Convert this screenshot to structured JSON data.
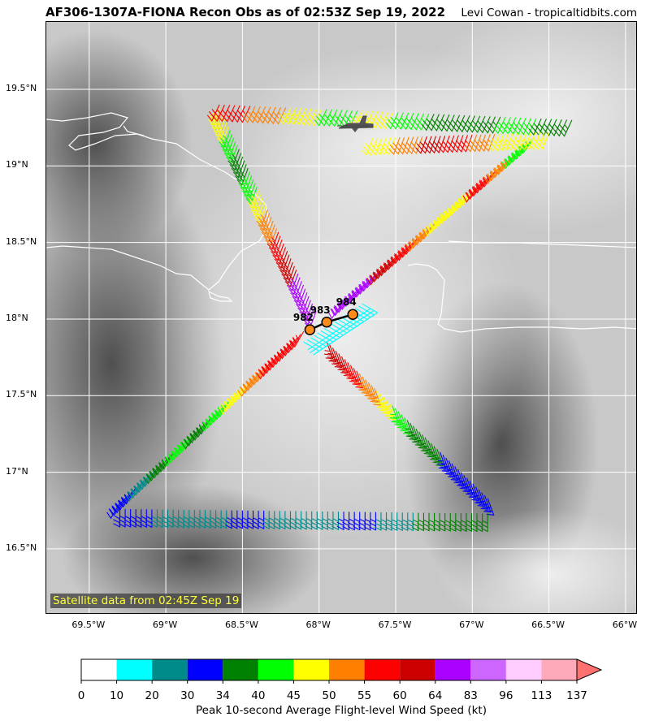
{
  "header": {
    "title": "AF306-1307A-FIONA Recon Obs as of 02:53Z Sep 19, 2022",
    "credit": "Levi Cowan - tropicaltidbits.com"
  },
  "map": {
    "lat_labels": [
      "19.5°N",
      "19°N",
      "18.5°N",
      "18°N",
      "17.5°N",
      "17°N",
      "16.5°N"
    ],
    "lon_labels": [
      "69.5°W",
      "69°W",
      "68.5°W",
      "68°W",
      "67.5°W",
      "67°W",
      "66.5°W",
      "66°W"
    ],
    "satellite_note": "Satellite data from 02:45Z Sep 19",
    "pressure_obs": [
      {
        "label": "982",
        "lat": 17.93,
        "lon": -68.06
      },
      {
        "label": "983",
        "lat": 17.98,
        "lon": -67.95
      },
      {
        "label": "984",
        "lat": 18.03,
        "lon": -67.78
      }
    ],
    "aircraft_icon": "aircraft-icon"
  },
  "colorbar": {
    "label": "Peak 10-second Average Flight-level Wind Speed (kt)",
    "ticks": [
      "0",
      "10",
      "20",
      "30",
      "34",
      "40",
      "45",
      "50",
      "55",
      "60",
      "64",
      "83",
      "96",
      "113",
      "137"
    ],
    "colors": [
      "#ffffff",
      "#00ffff",
      "#008b8b",
      "#0000ff",
      "#008000",
      "#00ff00",
      "#ffff00",
      "#ff8000",
      "#ff0000",
      "#cc0000",
      "#aa00ff",
      "#cc66ff",
      "#ffccff",
      "#ffaabb"
    ],
    "extend_color": "#ff7070"
  },
  "colors": {
    "grid": "#ffffff",
    "coast": "#ffffff",
    "obs_marker": "#ff8c1a"
  }
}
